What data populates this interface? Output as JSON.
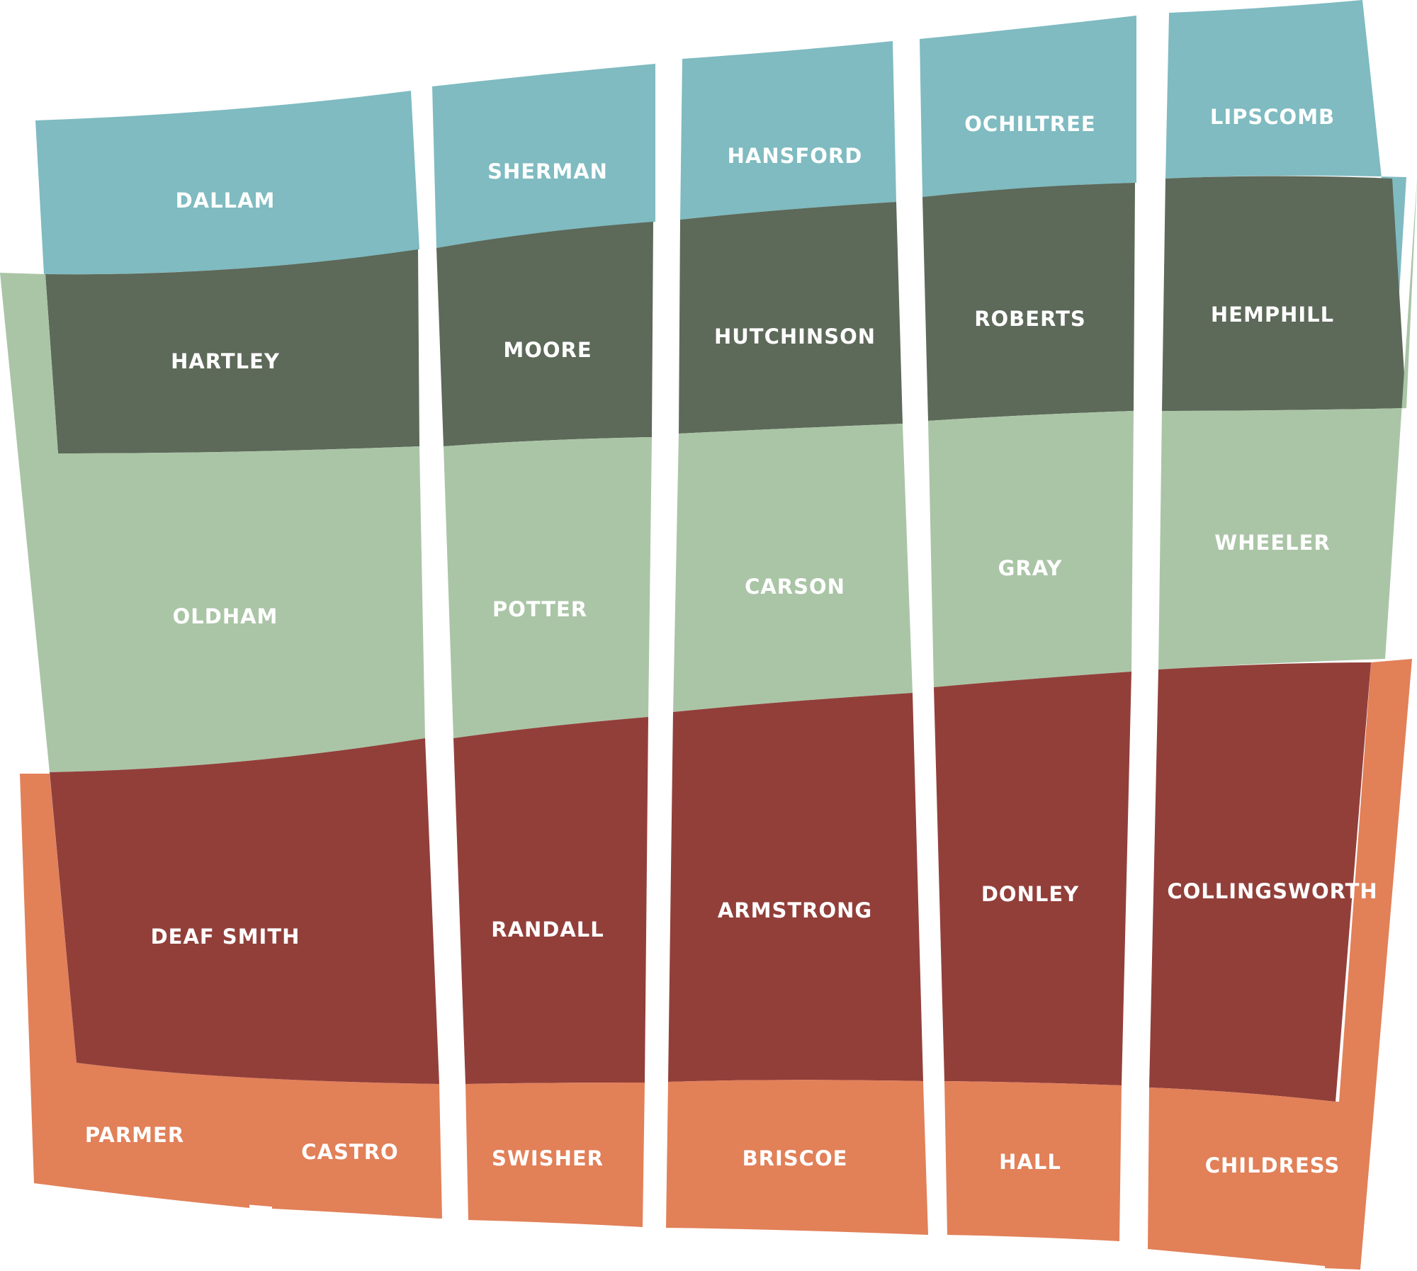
{
  "colors": {
    "background": "#ffffff",
    "teal": "#7fbbc1",
    "dark_green": "#5d6959",
    "sage": "#aac5a6",
    "brick": "#923f3a",
    "orange": "#e28058",
    "label": "#ffffff"
  },
  "counties": [
    {
      "name": "DALLAM",
      "band": "teal"
    },
    {
      "name": "SHERMAN",
      "band": "teal"
    },
    {
      "name": "HANSFORD",
      "band": "teal"
    },
    {
      "name": "OCHILTREE",
      "band": "teal"
    },
    {
      "name": "LIPSCOMB",
      "band": "teal"
    },
    {
      "name": "HARTLEY",
      "band": "dark_green"
    },
    {
      "name": "MOORE",
      "band": "dark_green"
    },
    {
      "name": "HUTCHINSON",
      "band": "dark_green"
    },
    {
      "name": "ROBERTS",
      "band": "dark_green"
    },
    {
      "name": "HEMPHILL",
      "band": "dark_green"
    },
    {
      "name": "OLDHAM",
      "band": "sage"
    },
    {
      "name": "POTTER",
      "band": "sage"
    },
    {
      "name": "CARSON",
      "band": "sage"
    },
    {
      "name": "GRAY",
      "band": "sage"
    },
    {
      "name": "WHEELER",
      "band": "sage"
    },
    {
      "name": "DEAF SMITH",
      "band": "brick"
    },
    {
      "name": "RANDALL",
      "band": "brick"
    },
    {
      "name": "ARMSTRONG",
      "band": "brick"
    },
    {
      "name": "DONLEY",
      "band": "brick"
    },
    {
      "name": "COLLINGSWORTH",
      "band": "brick"
    },
    {
      "name": "PARMER",
      "band": "orange"
    },
    {
      "name": "CASTRO",
      "band": "orange"
    },
    {
      "name": "SWISHER",
      "band": "orange"
    },
    {
      "name": "BRISCOE",
      "band": "orange"
    },
    {
      "name": "HALL",
      "band": "orange"
    },
    {
      "name": "CHILDRESS",
      "band": "orange"
    }
  ]
}
